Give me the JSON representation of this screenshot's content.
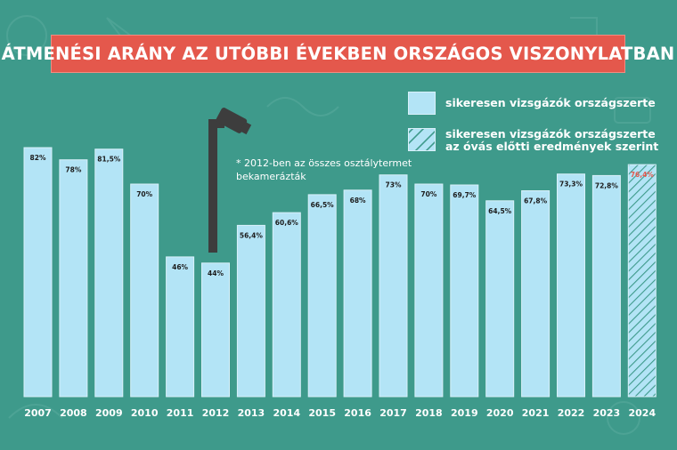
{
  "title": "ÁTMENÉSI ARÁNY AZ UTÓBBI ÉVEKBEN ORSZÁGOS VISZONYLATBAN",
  "legend": {
    "solid_label": "sikeresen vizsgázók országszerte",
    "hatched_label_line1": "sikeresen vizsgázók országszerte",
    "hatched_label_line2": "az óvás előtti eredmények szerint"
  },
  "note": {
    "line1": "* 2012-ben az összes osztálytermet",
    "line2": "bekamerázták"
  },
  "icons": [
    "security-camera-icon"
  ],
  "colors": {
    "background": "#3e9a8b",
    "bar": "#b3e4f6",
    "title_background": "#e4584c",
    "value_label": "#1c1c1c",
    "hatched_value_label": "#e4584c",
    "camera": "#3d3d3d",
    "axis_label": "#ffffff"
  },
  "chart_data": {
    "type": "bar",
    "categories": [
      "2007",
      "2008",
      "2009",
      "2010",
      "2011",
      "2012",
      "2013",
      "2014",
      "2015",
      "2016",
      "2017",
      "2018",
      "2019",
      "2020",
      "2021",
      "2022",
      "2023",
      "2024"
    ],
    "values": [
      82,
      78,
      81.5,
      70,
      46,
      44,
      56.4,
      60.6,
      66.5,
      68,
      73,
      70,
      69.7,
      64.5,
      67.8,
      73.3,
      72.8,
      76.4
    ],
    "value_labels": [
      "82%",
      "78%",
      "81,5%",
      "70%",
      "46%",
      "44%",
      "56,4%",
      "60,6%",
      "66,5%",
      "68%",
      "73%",
      "70%",
      "69,7%",
      "64,5%",
      "67,8%",
      "73,3%",
      "72,8%",
      "76,4%"
    ],
    "hatched": [
      false,
      false,
      false,
      false,
      false,
      false,
      false,
      false,
      false,
      false,
      false,
      false,
      false,
      false,
      false,
      false,
      false,
      true
    ],
    "series": [
      {
        "name": "sikeresen vizsgázók országszerte",
        "years": [
          "2007",
          "2008",
          "2009",
          "2010",
          "2011",
          "2012",
          "2013",
          "2014",
          "2015",
          "2016",
          "2017",
          "2018",
          "2019",
          "2020",
          "2021",
          "2022",
          "2023"
        ]
      },
      {
        "name": "sikeresen vizsgázók országszerte az óvás előtti eredmények szerint",
        "years": [
          "2024"
        ]
      }
    ],
    "ylim": [
      0,
      82
    ],
    "grid": false,
    "legend_position": "top-right"
  }
}
